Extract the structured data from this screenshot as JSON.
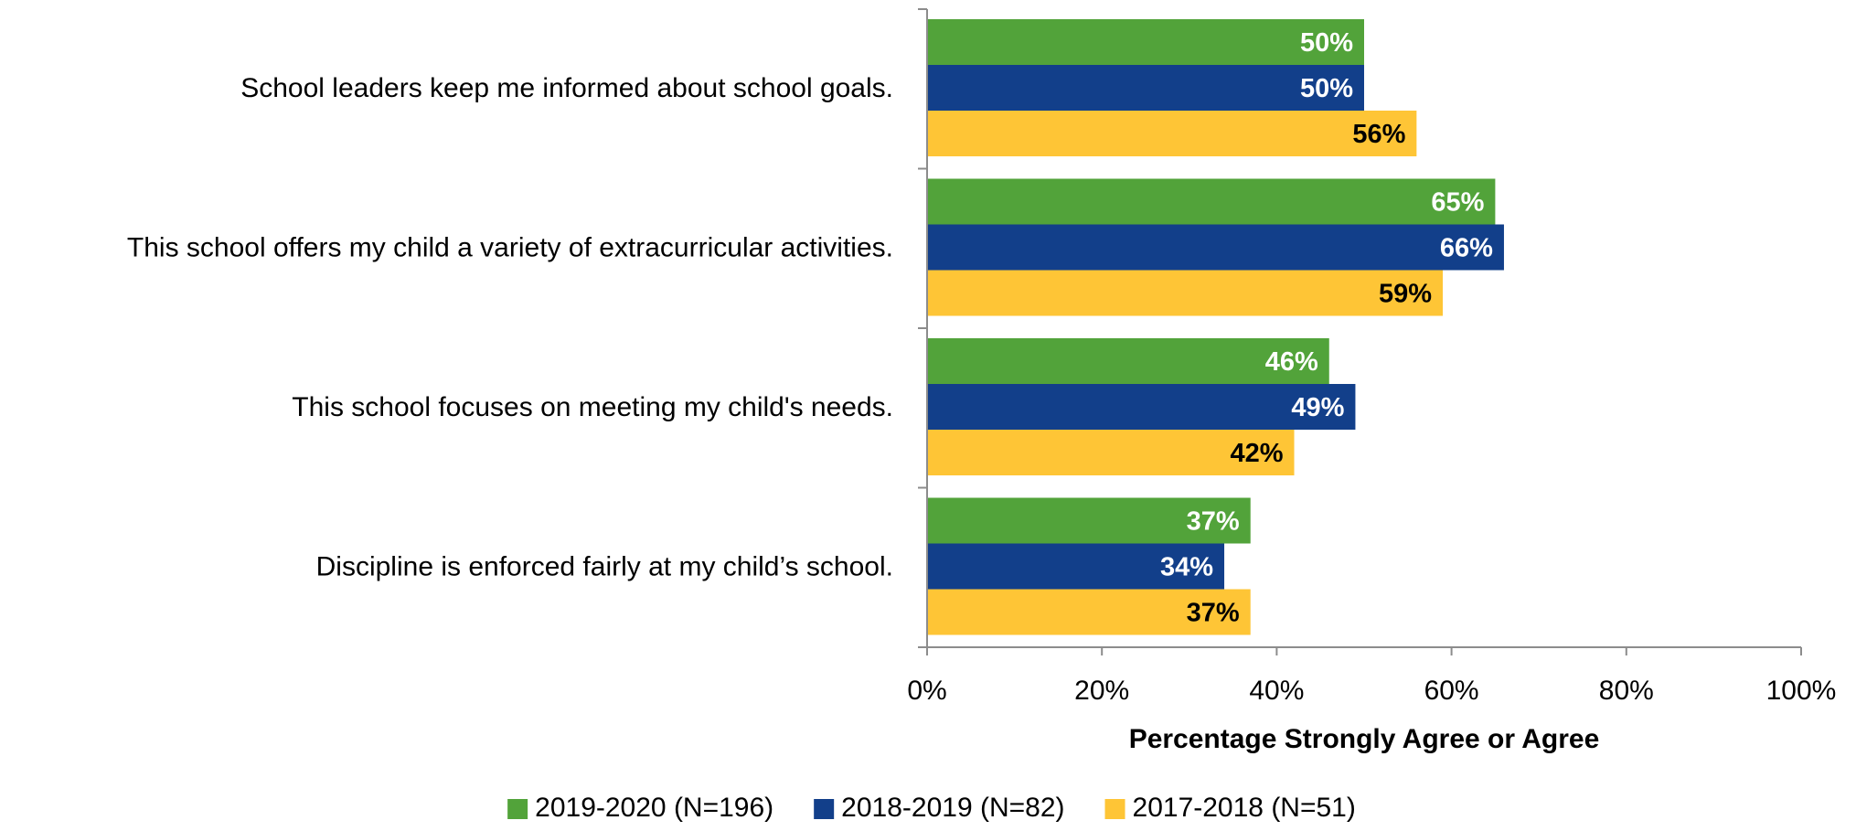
{
  "chart_data": {
    "type": "bar",
    "orientation": "horizontal",
    "categories": [
      "School leaders keep me informed about school goals.",
      "This school offers my child a variety of extracurricular activities.",
      "This school focuses on meeting my child's needs.",
      "Discipline is enforced fairly at my child’s school."
    ],
    "series": [
      {
        "name": "2019-2020 (N=196)",
        "color": "#52a33a",
        "label_color": "#ffffff",
        "values": [
          50,
          65,
          46,
          37
        ]
      },
      {
        "name": "2018-2019 (N=82)",
        "color": "#123f8a",
        "label_color": "#ffffff",
        "values": [
          50,
          66,
          49,
          34
        ]
      },
      {
        "name": "2017-2018 (N=51)",
        "color": "#fec536",
        "label_color": "#000000",
        "values": [
          56,
          59,
          42,
          37
        ]
      }
    ],
    "xlabel": "Percentage Strongly Agree or Agree",
    "xlim": [
      0,
      100
    ],
    "xticks": [
      0,
      20,
      40,
      60,
      80,
      100
    ],
    "tick_suffix": "%",
    "value_suffix": "%",
    "legend": "bottom",
    "grid": false
  }
}
